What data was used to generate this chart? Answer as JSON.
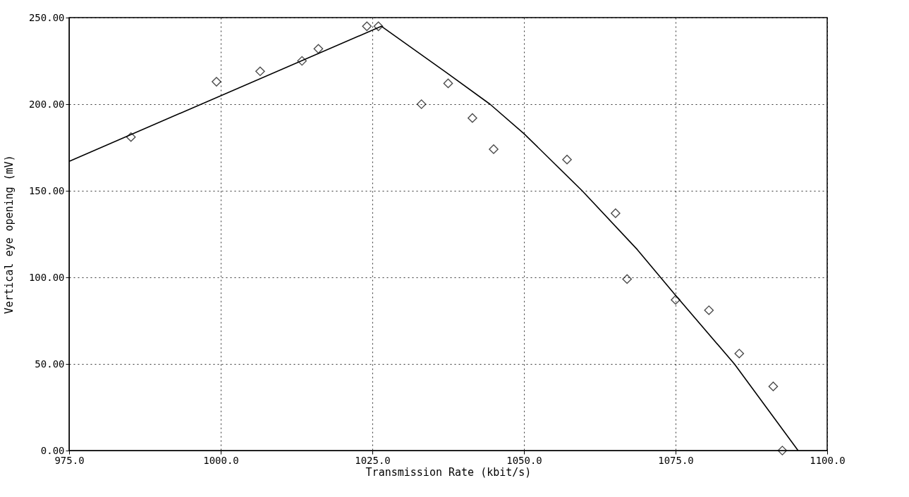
{
  "chart_data": {
    "type": "scatter",
    "xlabel": "Transmission Rate (kbit/s)",
    "ylabel": "Vertical eye opening (mV)",
    "xlim": [
      975,
      1100
    ],
    "ylim": [
      0,
      250
    ],
    "xticks": [
      {
        "value": 975,
        "label": "975.0"
      },
      {
        "value": 1000,
        "label": "1000.0"
      },
      {
        "value": 1025,
        "label": "1025.0"
      },
      {
        "value": 1050,
        "label": "1050.0"
      },
      {
        "value": 1075,
        "label": "1075.0"
      },
      {
        "value": 1100,
        "label": "1100.0"
      }
    ],
    "yticks": [
      {
        "value": 0,
        "label": "0.00"
      },
      {
        "value": 50,
        "label": "50.00"
      },
      {
        "value": 100,
        "label": "100.00"
      },
      {
        "value": 150,
        "label": "150.00"
      },
      {
        "value": 200,
        "label": "200.00"
      },
      {
        "value": 250,
        "label": "250.00"
      }
    ],
    "grid": true,
    "series": [
      {
        "marker": "diamond",
        "color": "#000000",
        "x": [
          985.2,
          999.3,
          1006.5,
          1013.4,
          1016.1,
          1024.1,
          1026.0,
          1033.1,
          1037.5,
          1041.5,
          1045.0,
          1057.1,
          1065.1,
          1067.0,
          1075.0,
          1080.5,
          1085.5,
          1091.1,
          1092.6
        ],
        "values": [
          181,
          213,
          219,
          225,
          232,
          245,
          245,
          200,
          212,
          192,
          174,
          168,
          137,
          99,
          87,
          81,
          56,
          37,
          0
        ]
      },
      {
        "type": "line",
        "marker": "none",
        "line_style": "solid",
        "color": "#000000",
        "x": [
          975,
          1026.5,
          1037.3,
          1044.4,
          1050,
          1059.6,
          1068.7,
          1074.9,
          1084.7,
          1095.2
        ],
        "values": [
          167,
          245,
          218,
          200,
          183,
          150,
          116,
          90,
          50,
          0
        ]
      }
    ]
  }
}
